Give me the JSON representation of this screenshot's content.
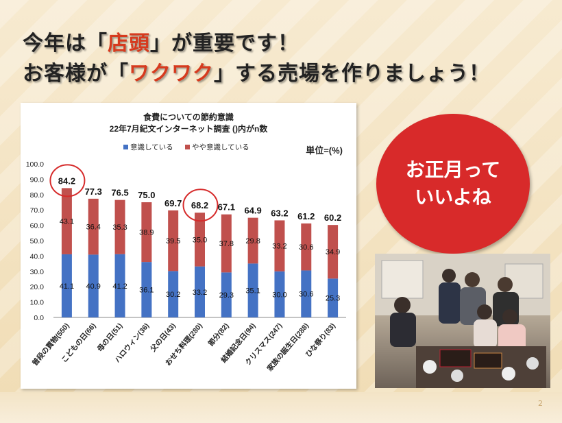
{
  "headline": {
    "line1_a": "今年は「",
    "line1_hl": "店頭",
    "line1_b": "」が重要です！",
    "line2_a": "お客様が「",
    "line2_hl": "ワクワク",
    "line2_b": "」する売場を作りましょう！"
  },
  "callout": {
    "text": "お正月って\nいいよね"
  },
  "page_number": "2",
  "colors": {
    "conscious": "#4472c4",
    "somewhat": "#c0504d",
    "callout": "#d82a2a",
    "accent_text": "#d63a1e"
  },
  "chart_data": {
    "type": "bar",
    "stacked": true,
    "title": "食費についての節約意識",
    "subtitle": "22年7月紀文インターネット調査 ()内がn数",
    "unit_label": "単位=(%)",
    "categories": [
      "普段の買物(550)",
      "こどもの日(66)",
      "母の日(51)",
      "ハロウィン(36)",
      "父の日(43)",
      "おせち料理(280)",
      "節分(82)",
      "結婚記念日(94)",
      "クリスマス(247)",
      "家族の誕生日(288)",
      "ひな祭り(83)"
    ],
    "series": [
      {
        "name": "意識している",
        "values": [
          41.1,
          40.9,
          41.2,
          36.1,
          30.2,
          33.2,
          29.3,
          35.1,
          30.0,
          30.6,
          25.3
        ]
      },
      {
        "name": "やや意識している",
        "values": [
          43.1,
          36.4,
          35.3,
          38.9,
          39.5,
          35.0,
          37.8,
          29.8,
          33.2,
          30.6,
          34.9
        ]
      }
    ],
    "totals": [
      "84.2",
      "77.3",
      "76.5",
      "75.0",
      "69.7",
      "68.2",
      "67.1",
      "64.9",
      "63.2",
      "61.2",
      "60.2"
    ],
    "bottom_labels": [
      "41.1",
      "40.9",
      "41.2",
      "36.1",
      "30.2",
      "33.2",
      "29.3",
      "35.1",
      "30.0",
      "30.6",
      "25.3"
    ],
    "top_labels": [
      "43.1",
      "36.4",
      "35.3",
      "38.9",
      "39.5",
      "35.0",
      "37.8",
      "29.8",
      "33.2",
      "30.6",
      "34.9"
    ],
    "y_ticks": [
      "0.0",
      "10.0",
      "20.0",
      "30.0",
      "40.0",
      "50.0",
      "60.0",
      "70.0",
      "80.0",
      "90.0",
      "100.0"
    ],
    "ylim": [
      0,
      100
    ],
    "highlighted_categories": [
      "普段の買物(550)",
      "おせち料理(280)"
    ],
    "legend_position": "top"
  }
}
